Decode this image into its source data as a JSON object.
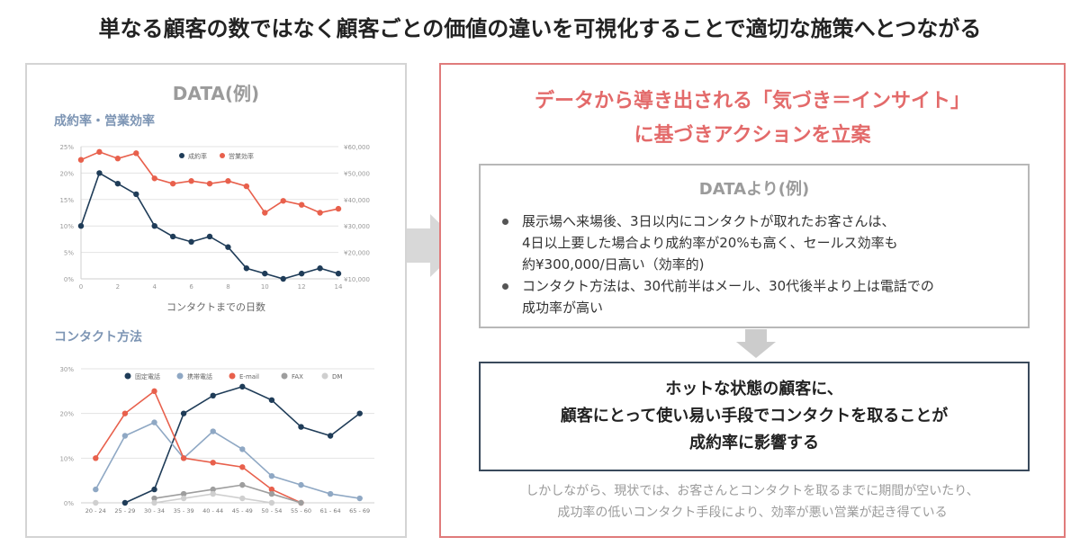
{
  "headline": "単なる顧客の数ではなく顧客ごとの価値の違いを可視化することで適切な施策へとつながる",
  "left_panel": {
    "title": "DATA(例)",
    "section1": "成約率・営業効率",
    "section2": "コンタクト方法"
  },
  "right_panel": {
    "title_line1": "データから導き出される「気づき＝インサイト」",
    "title_line2": "に基づきアクションを立案",
    "data_box": {
      "title": "DATAより(例)",
      "bullets": [
        {
          "line1": "展示場へ来場後、3日以内にコンタクトが取れたお客さんは、",
          "line2": "4日以上要した場合より成約率が20%も高く、セールス効率も",
          "line3": "約¥300,000/日高い（効率的)"
        },
        {
          "line1": "コンタクト方法は、30代前半はメール、30代後半より上は電話での",
          "line2": "成功率が高い"
        }
      ]
    },
    "action": {
      "line1": "ホットな状態の顧客に、",
      "line2": "顧客にとって使い易い手段でコンタクトを取ることが",
      "line3": "成約率に影響する"
    },
    "footnote_line1": "しかしながら、現状では、お客さんとコンタクトを取るまでに期間が空いたり、",
    "footnote_line2": "成功率の低いコンタクト手段により、効率が悪い営業が起き得ている"
  },
  "colors": {
    "navy": "#1f3c58",
    "coral": "#e8604c",
    "light_blue": "#8fa8c4",
    "gray": "#9e9e9e",
    "light_gray": "#cfcfcf",
    "accent_red": "#e36a6a"
  },
  "chart_data": [
    {
      "type": "line",
      "x": [
        0,
        1,
        2,
        3,
        4,
        5,
        6,
        7,
        8,
        9,
        10,
        11,
        12,
        13,
        14
      ],
      "xlabel": "コンタクトまでの日数",
      "x_ticks": [
        "0",
        "2",
        "4",
        "6",
        "8",
        "10",
        "12",
        "14"
      ],
      "y_ticks": [
        "0%",
        "5%",
        "10%",
        "15%",
        "20%",
        "25%"
      ],
      "y2_ticks": [
        "¥10,000",
        "¥20,000",
        "¥30,000",
        "¥40,000",
        "¥50,000",
        "¥60,000"
      ],
      "ylim": [
        0,
        25
      ],
      "y2lim": [
        10000,
        60000
      ],
      "grid": true,
      "legend": "top-center",
      "series": [
        {
          "name": "成約率",
          "axis": "left",
          "color": "#1f3c58",
          "values": [
            10,
            20,
            18,
            16,
            10,
            8,
            7,
            8,
            6,
            2,
            1,
            0,
            1,
            2,
            1
          ]
        },
        {
          "name": "営業効率",
          "axis": "right",
          "color": "#e8604c",
          "values": [
            55000,
            58000,
            55500,
            57500,
            48000,
            46000,
            47000,
            46000,
            47000,
            45000,
            35000,
            39500,
            38000,
            35000,
            36500
          ]
        }
      ]
    },
    {
      "type": "line",
      "categories": [
        "20 - 24",
        "25 - 29",
        "30 - 34",
        "35 - 39",
        "40 - 44",
        "45 - 49",
        "50 - 54",
        "55 - 60",
        "61 - 64",
        "65 - 69"
      ],
      "y_ticks": [
        "0%",
        "10%",
        "20%",
        "30%"
      ],
      "ylim": [
        0,
        30
      ],
      "grid": true,
      "legend": "top-center",
      "series": [
        {
          "name": "固定電話",
          "color": "#1f3c58",
          "values": [
            null,
            0,
            3,
            20,
            24,
            26,
            23,
            17,
            15,
            20
          ]
        },
        {
          "name": "携帯電話",
          "color": "#8fa8c4",
          "values": [
            3,
            15,
            18,
            10,
            16,
            12,
            6,
            4,
            2,
            1
          ]
        },
        {
          "name": "E-mail",
          "color": "#e8604c",
          "values": [
            10,
            20,
            25,
            10,
            9,
            8,
            3,
            0,
            null,
            null
          ]
        },
        {
          "name": "FAX",
          "color": "#9e9e9e",
          "values": [
            null,
            null,
            1,
            2,
            3,
            4,
            2,
            0,
            null,
            null
          ]
        },
        {
          "name": "DM",
          "color": "#cfcfcf",
          "values": [
            0,
            null,
            0,
            1,
            2,
            1,
            0,
            null,
            null,
            null
          ]
        }
      ]
    }
  ]
}
